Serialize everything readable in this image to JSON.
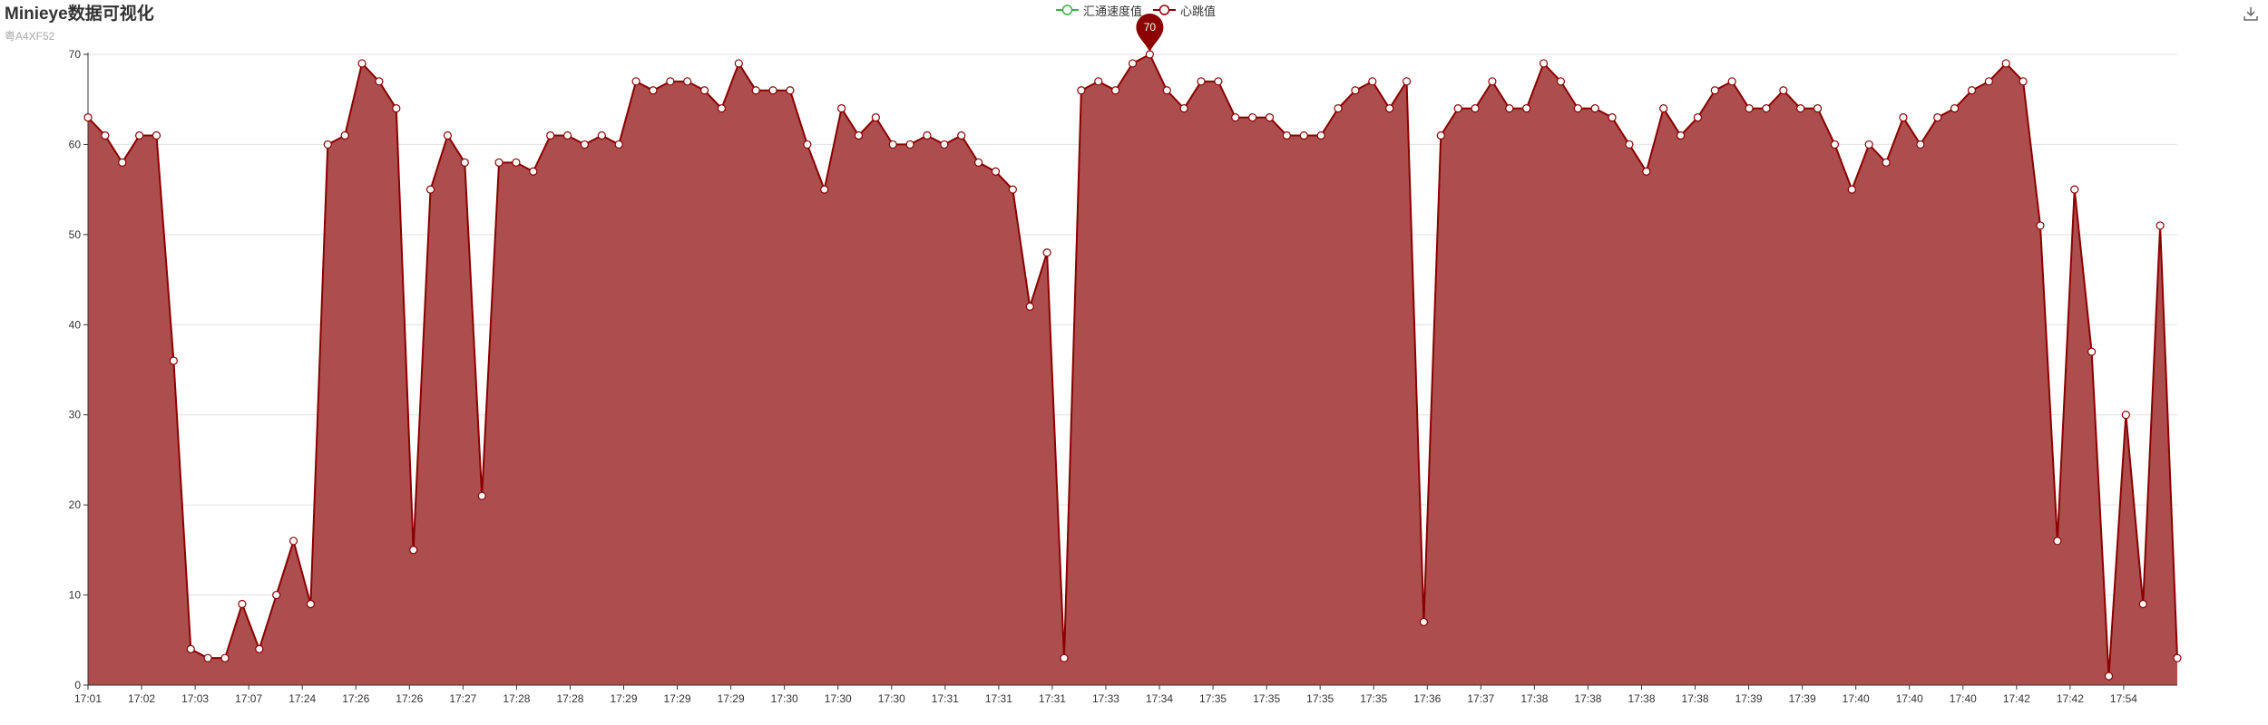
{
  "header": {
    "title": "Minieye数据可视化",
    "subtitle": "粤A4XF52"
  },
  "toolbox": {
    "icon": "download-icon"
  },
  "chart_data": {
    "type": "area",
    "title": "Minieye数据可视化",
    "subtitle": "粤A4XF52",
    "legend_position": "top-center",
    "grid": true,
    "ylim": [
      0,
      70
    ],
    "y_ticks": [
      0,
      10,
      20,
      30,
      40,
      50,
      60,
      70
    ],
    "x_tick_labels": [
      "17:01",
      "17:02",
      "17:03",
      "17:07",
      "17:24",
      "17:26",
      "17:26",
      "17:27",
      "17:28",
      "17:28",
      "17:29",
      "17:29",
      "17:29",
      "17:30",
      "17:30",
      "17:30",
      "17:31",
      "17:31",
      "17:31",
      "17:33",
      "17:34",
      "17:35",
      "17:35",
      "17:35",
      "17:35",
      "17:36",
      "17:37",
      "17:38",
      "17:38",
      "17:38",
      "17:38",
      "17:39",
      "17:39",
      "17:40",
      "17:40",
      "17:40",
      "17:42",
      "17:42",
      "17:54"
    ],
    "colors": {
      "speed": "#3cb043",
      "heart": "#8b0000",
      "heart_area": "#ad4e4e"
    },
    "max_marker": {
      "label": "70"
    },
    "series": [
      {
        "name": "汇通速度值",
        "values": []
      },
      {
        "name": "心跳值",
        "values": [
          63,
          61,
          58,
          61,
          61,
          36,
          4,
          3,
          3,
          9,
          4,
          10,
          16,
          9,
          60,
          61,
          69,
          67,
          64,
          15,
          55,
          61,
          58,
          21,
          58,
          58,
          57,
          61,
          61,
          60,
          61,
          60,
          67,
          66,
          67,
          67,
          66,
          64,
          69,
          66,
          66,
          66,
          60,
          55,
          64,
          61,
          63,
          60,
          60,
          61,
          60,
          61,
          58,
          57,
          55,
          42,
          48,
          3,
          66,
          67,
          66,
          69,
          70,
          66,
          64,
          67,
          67,
          63,
          63,
          63,
          61,
          61,
          61,
          64,
          66,
          67,
          64,
          67,
          7,
          61,
          64,
          64,
          67,
          64,
          64,
          69,
          67,
          64,
          64,
          63,
          60,
          57,
          64,
          61,
          63,
          66,
          67,
          64,
          64,
          66,
          64,
          64,
          60,
          55,
          60,
          58,
          63,
          60,
          63,
          64,
          66,
          67,
          69,
          67,
          51,
          16,
          55,
          37,
          1,
          30,
          9,
          51,
          3
        ]
      }
    ]
  }
}
